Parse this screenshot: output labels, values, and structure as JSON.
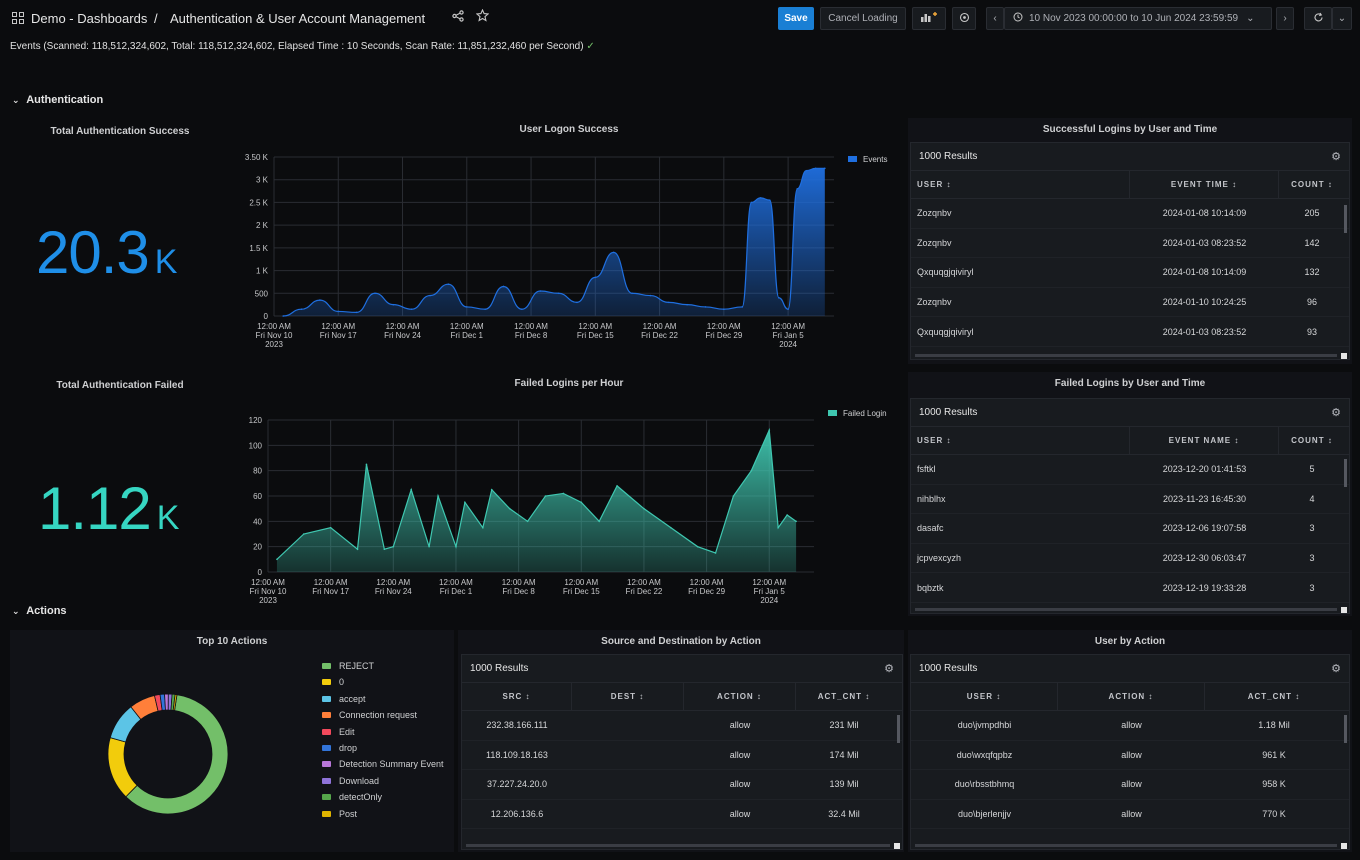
{
  "header": {
    "folder": "Demo - Dashboards",
    "separator": "/",
    "title": "Authentication & User Account Management",
    "save_label": "Save",
    "cancel_label": "Cancel Loading",
    "time_range": "10 Nov 2023 00:00:00 to 10 Jun 2024 23:59:59"
  },
  "events_status": {
    "text": "Events (Scanned: 118,512,324,602, Total: 118,512,324,602, Elapsed Time : 10 Seconds, Scan Rate: 11,851,232,460 per Second)",
    "check": "✓"
  },
  "rows": {
    "authentication": "Authentication",
    "actions": "Actions",
    "chevron": "⌄"
  },
  "stats": {
    "success": {
      "title": "Total Authentication Success",
      "value": "20.3",
      "unit": "K",
      "color": "#1f8fe8"
    },
    "failed": {
      "title": "Total Authentication Failed",
      "value": "1.12",
      "unit": "K",
      "color": "#36d6c2"
    }
  },
  "x_ticks": [
    {
      "time": "12:00 AM",
      "date": "Fri Nov 10",
      "year": "2023"
    },
    {
      "time": "12:00 AM",
      "date": "Fri Nov 17",
      "year": ""
    },
    {
      "time": "12:00 AM",
      "date": "Fri Nov 24",
      "year": ""
    },
    {
      "time": "12:00 AM",
      "date": "Fri Dec 1",
      "year": ""
    },
    {
      "time": "12:00 AM",
      "date": "Fri Dec 8",
      "year": ""
    },
    {
      "time": "12:00 AM",
      "date": "Fri Dec 15",
      "year": ""
    },
    {
      "time": "12:00 AM",
      "date": "Fri Dec 22",
      "year": ""
    },
    {
      "time": "12:00 AM",
      "date": "Fri Dec 29",
      "year": ""
    },
    {
      "time": "12:00 AM",
      "date": "Fri Jan 5",
      "year": "2024"
    }
  ],
  "chart_data": [
    {
      "type": "area",
      "title": "User Logon Success",
      "series": [
        {
          "name": "Events",
          "color": "#1f6fe0",
          "x": [
            "2023-11-11",
            "2023-11-13",
            "2023-11-15",
            "2023-11-17",
            "2023-11-19",
            "2023-11-21",
            "2023-11-23",
            "2023-11-25",
            "2023-11-27",
            "2023-11-29",
            "2023-12-01",
            "2023-12-03",
            "2023-12-05",
            "2023-12-07",
            "2023-12-09",
            "2023-12-11",
            "2023-12-13",
            "2023-12-15",
            "2023-12-17",
            "2023-12-19",
            "2023-12-21",
            "2023-12-23",
            "2023-12-25",
            "2023-12-27",
            "2023-12-29",
            "2023-12-31",
            "2024-01-01",
            "2024-01-02",
            "2024-01-03",
            "2024-01-04",
            "2024-01-05",
            "2024-01-06",
            "2024-01-07",
            "2024-01-08",
            "2024-01-09"
          ],
          "values": [
            0,
            150,
            350,
            100,
            80,
            500,
            250,
            150,
            450,
            700,
            200,
            150,
            650,
            150,
            550,
            500,
            300,
            850,
            1400,
            500,
            450,
            300,
            250,
            200,
            150,
            200,
            2500,
            2600,
            2550,
            400,
            150,
            2800,
            3200,
            3250,
            3250
          ]
        }
      ],
      "ylim": [
        0,
        3500
      ],
      "y_ticks": [
        "0",
        "500",
        "1 K",
        "1.5 K",
        "2 K",
        "2.5 K",
        "3 K",
        "3.50 K"
      ],
      "legend": "top-right"
    },
    {
      "type": "area",
      "title": "Failed Logins per Hour",
      "series": [
        {
          "name": "Failed Login",
          "color": "#3fc7b0",
          "x": [
            "2023-11-11",
            "2023-11-14",
            "2023-11-17",
            "2023-11-20",
            "2023-11-21",
            "2023-11-23",
            "2023-11-24",
            "2023-11-26",
            "2023-11-28",
            "2023-11-29",
            "2023-12-01",
            "2023-12-02",
            "2023-12-04",
            "2023-12-05",
            "2023-12-07",
            "2023-12-09",
            "2023-12-11",
            "2023-12-13",
            "2023-12-15",
            "2023-12-17",
            "2023-12-19",
            "2023-12-22",
            "2023-12-25",
            "2023-12-28",
            "2023-12-30",
            "2024-01-01",
            "2024-01-03",
            "2024-01-05",
            "2024-01-06",
            "2024-01-07",
            "2024-01-08"
          ],
          "values": [
            10,
            30,
            35,
            18,
            85,
            18,
            20,
            65,
            20,
            60,
            20,
            55,
            35,
            65,
            50,
            40,
            60,
            62,
            55,
            40,
            68,
            50,
            35,
            20,
            15,
            60,
            80,
            112,
            35,
            45,
            40
          ]
        }
      ],
      "ylim": [
        0,
        120
      ],
      "y_ticks": [
        "0",
        "20",
        "40",
        "60",
        "80",
        "100",
        "120"
      ],
      "legend": "top-right"
    },
    {
      "type": "pie",
      "title": "Top 10 Actions",
      "categories": [
        "REJECT",
        "0",
        "accept",
        "Connection request",
        "Edit",
        "drop",
        "Detection Summary Event",
        "Download",
        "detectOnly",
        "Post"
      ],
      "values": [
        60,
        17,
        10,
        7,
        1.5,
        1.2,
        1,
        1,
        0.8,
        0.5
      ],
      "colors": [
        "#73bf69",
        "#f2cc0c",
        "#5cc4e6",
        "#ff7f3a",
        "#f2495c",
        "#3274d9",
        "#b877d9",
        "#8f73d9",
        "#56a64b",
        "#e0b400"
      ],
      "legend": "right"
    }
  ],
  "tables": {
    "success": {
      "title": "Successful Logins by User and Time",
      "results": "1000 Results",
      "columns": [
        "USER ↕",
        "EVENT TIME ↕",
        "COUNT ↕"
      ],
      "rows": [
        [
          "Zozqnbv",
          "2024-01-08 10:14:09",
          "205"
        ],
        [
          "Zozqnbv",
          "2024-01-03 08:23:52",
          "142"
        ],
        [
          "Qxquqgjqiviryl",
          "2024-01-08 10:14:09",
          "132"
        ],
        [
          "Zozqnbv",
          "2024-01-10 10:24:25",
          "96"
        ],
        [
          "Qxquqgjqiviryl",
          "2024-01-03 08:23:52",
          "93"
        ]
      ]
    },
    "failed": {
      "title": "Failed Logins by User and Time",
      "results": "1000 Results",
      "columns": [
        "USER ↕",
        "EVENT NAME ↕",
        "COUNT ↕"
      ],
      "rows": [
        [
          "fsftkl",
          "2023-12-20 01:41:53",
          "5"
        ],
        [
          "nihblhx",
          "2023-11-23 16:45:30",
          "4"
        ],
        [
          "dasafc",
          "2023-12-06 19:07:58",
          "3"
        ],
        [
          "jcpvexcyzh",
          "2023-12-30 06:03:47",
          "3"
        ],
        [
          "bqbztk",
          "2023-12-19 19:33:28",
          "3"
        ]
      ]
    },
    "src_dest": {
      "title": "Source and Destination by Action",
      "results": "1000 Results",
      "columns": [
        "SRC ↕",
        "DEST ↕",
        "ACTION ↕",
        "ACT_CNT ↕"
      ],
      "rows": [
        [
          "232.38.166.111",
          "",
          "allow",
          "231 Mil"
        ],
        [
          "118.109.18.163",
          "",
          "allow",
          "174 Mil"
        ],
        [
          "37.227.24.20.0",
          "",
          "allow",
          "139 Mil"
        ],
        [
          "12.206.136.6",
          "",
          "allow",
          "32.4 Mil"
        ]
      ]
    },
    "user_action": {
      "title": "User by Action",
      "results": "1000 Results",
      "columns": [
        "USER ↕",
        "ACTION ↕",
        "ACT_CNT ↕"
      ],
      "rows": [
        [
          "duo\\jvmpdhbi",
          "allow",
          "1.18 Mil"
        ],
        [
          "duo\\wxqfqpbz",
          "allow",
          "961 K"
        ],
        [
          "duo\\rbsstbhmq",
          "allow",
          "958 K"
        ],
        [
          "duo\\bjerlenjjv",
          "allow",
          "770 K"
        ]
      ]
    }
  }
}
